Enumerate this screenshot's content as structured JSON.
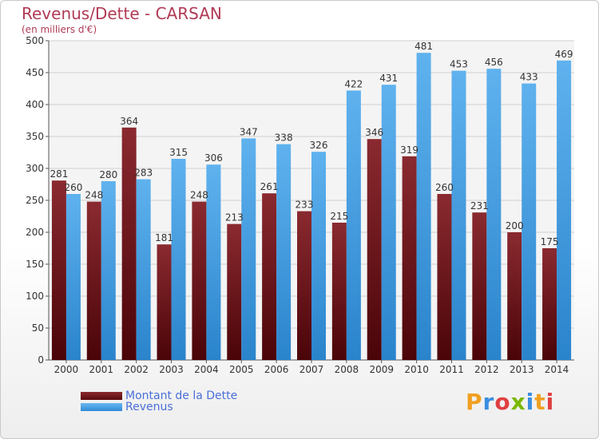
{
  "header": {
    "title": "Revenus/Dette - CARSAN",
    "subtitle": "(en milliers d'€)"
  },
  "colors": {
    "dette": "#6b1116",
    "revenus": "#2f93dc",
    "title": "#b03a55",
    "legend_text": "#4a6fd8"
  },
  "chart_data": {
    "type": "bar",
    "title": "Revenus/Dette - CARSAN",
    "subtitle": "(en milliers d'€)",
    "categories": [
      "2000",
      "2001",
      "2002",
      "2003",
      "2004",
      "2005",
      "2006",
      "2007",
      "2008",
      "2009",
      "2010",
      "2011",
      "2012",
      "2013",
      "2014"
    ],
    "series": [
      {
        "name": "Montant de la Dette",
        "values": [
          281,
          248,
          364,
          181,
          248,
          213,
          261,
          233,
          215,
          346,
          319,
          260,
          231,
          200,
          175
        ]
      },
      {
        "name": "Revenus",
        "values": [
          260,
          280,
          283,
          315,
          306,
          347,
          338,
          326,
          422,
          431,
          481,
          453,
          456,
          433,
          469
        ]
      }
    ],
    "ylim": [
      0,
      500
    ],
    "yticks": [
      0,
      50,
      100,
      150,
      200,
      250,
      300,
      350,
      400,
      450,
      500
    ],
    "grid": true,
    "legend": "bottom-left"
  },
  "legend": {
    "items": [
      "Montant de la Dette",
      "Revenus"
    ]
  },
  "logo": {
    "letters": [
      "P",
      "r",
      "o",
      "x",
      "i",
      "t",
      "i"
    ],
    "letter_colors": [
      "#f0a020",
      "#3a8ee0",
      "#e04040",
      "#7ab800",
      "#3a8ee0",
      "#f0a020",
      "#e04040"
    ]
  }
}
